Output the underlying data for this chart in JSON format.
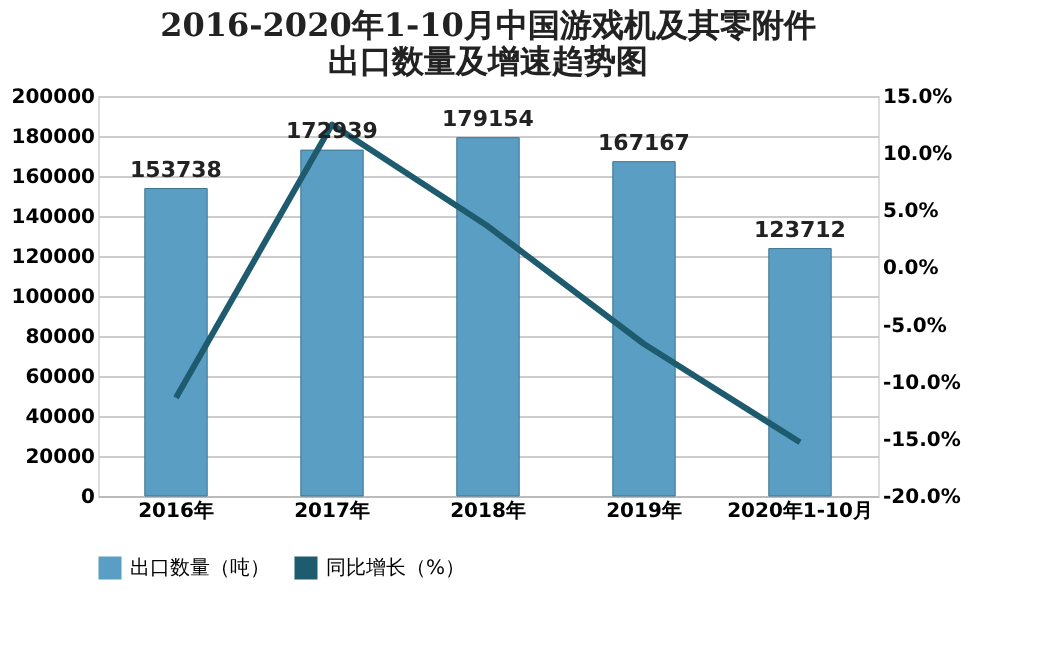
{
  "chart_data": {
    "type": "bar",
    "title": "2016-2020年1-10月中国游戏机及其零附件出口数量及增速趋势图",
    "categories": [
      "2016年",
      "2017年",
      "2018年",
      "2019年",
      "2020年1-10月"
    ],
    "series": [
      {
        "name": "出口数量（吨）",
        "color": "#5a9ec4",
        "values": [
          153738,
          172939,
          179154,
          167167,
          123712
        ],
        "value_labels": [
          "153738",
          "172939",
          "179154",
          "167167",
          "123712"
        ]
      },
      {
        "name": "同比增长（%）",
        "type": "line",
        "axis": "y2",
        "color": "#1e5b6e",
        "values": [
          -11.4,
          12.5,
          3.6,
          -6.7,
          -15.3
        ]
      }
    ],
    "ylim": [
      0,
      200000
    ],
    "yticks": [
      0,
      20000,
      40000,
      60000,
      80000,
      100000,
      120000,
      140000,
      160000,
      180000,
      200000
    ],
    "y2lim": [
      -20,
      15
    ],
    "y2ticks": [
      {
        "value": -20,
        "label": "-20.0%"
      },
      {
        "value": -15,
        "label": "-15.0%"
      },
      {
        "value": -10,
        "label": "-10.0%"
      },
      {
        "value": -5,
        "label": "-5.0%"
      },
      {
        "value": 0,
        "label": "0.0%"
      },
      {
        "value": 5,
        "label": "5.0%"
      },
      {
        "value": 10,
        "label": "10.0%"
      },
      {
        "value": 15,
        "label": "15.0%"
      }
    ],
    "grid": "y",
    "legend": "bottom",
    "marker": "none",
    "line_style": "solid"
  }
}
